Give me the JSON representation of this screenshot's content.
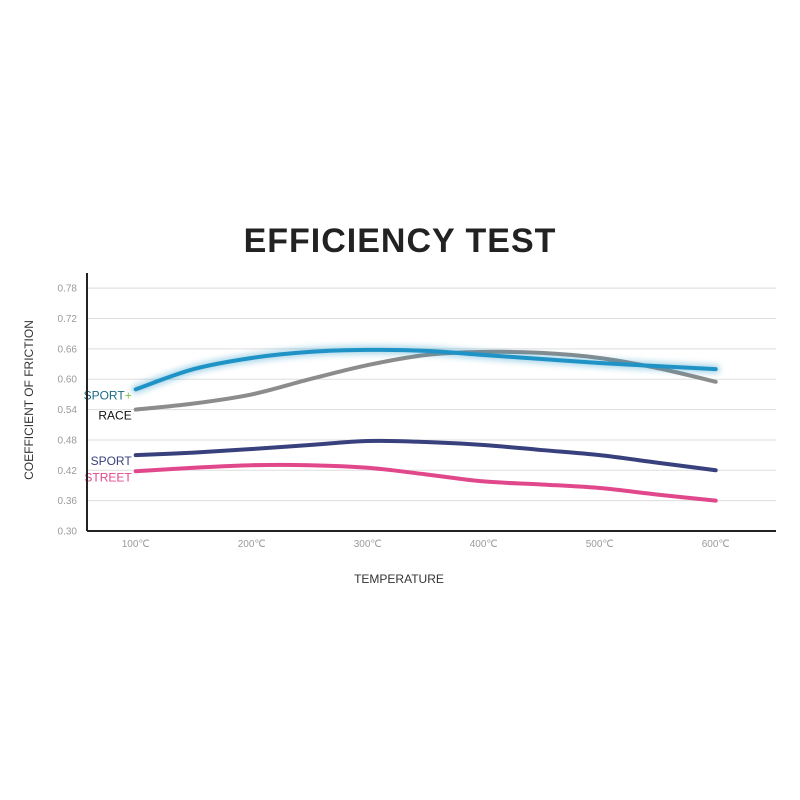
{
  "chart_data": {
    "type": "line",
    "title": "EFFICIENCY TEST",
    "xlabel": "TEMPERATURE",
    "ylabel": "COEFFICIENT OF FRICTION",
    "x": [
      100,
      150,
      200,
      250,
      300,
      350,
      400,
      450,
      500,
      550,
      600
    ],
    "x_tick_labels": [
      "100℃",
      "200℃",
      "300℃",
      "400℃",
      "500℃",
      "600℃"
    ],
    "x_ticks": [
      100,
      200,
      300,
      400,
      500,
      600
    ],
    "xlim": [
      58,
      652
    ],
    "ylim": [
      0.3,
      0.81
    ],
    "y_ticks": [
      0.3,
      0.36,
      0.42,
      0.48,
      0.54,
      0.6,
      0.66,
      0.72,
      0.78
    ],
    "y_tick_labels": [
      "0.30",
      "0.36",
      "0.42",
      "0.48",
      "0.54",
      "0.60",
      "0.66",
      "0.72",
      "0.78"
    ],
    "grid": true,
    "series": [
      {
        "name": "RACE",
        "color": "#8c8c8c",
        "label_color": "#111111",
        "values": [
          0.54,
          0.552,
          0.57,
          0.6,
          0.628,
          0.648,
          0.654,
          0.652,
          0.642,
          0.622,
          0.595
        ]
      },
      {
        "name": "SPORT",
        "label_suffix": "+",
        "color": "#1f93c6",
        "label_color": "#1b6b83",
        "suffix_color": "#7ac142",
        "glow": true,
        "values": [
          0.58,
          0.62,
          0.642,
          0.654,
          0.658,
          0.656,
          0.648,
          0.64,
          0.632,
          0.626,
          0.62
        ]
      },
      {
        "name": "SPORT",
        "color": "#38407e",
        "label_color": "#38407e",
        "values": [
          0.45,
          0.455,
          0.462,
          0.47,
          0.478,
          0.476,
          0.47,
          0.46,
          0.45,
          0.435,
          0.42
        ]
      },
      {
        "name": "STREET",
        "color": "#e1488c",
        "label_color": "#e1488c",
        "values": [
          0.418,
          0.425,
          0.43,
          0.43,
          0.425,
          0.412,
          0.398,
          0.392,
          0.385,
          0.372,
          0.36
        ]
      }
    ]
  }
}
